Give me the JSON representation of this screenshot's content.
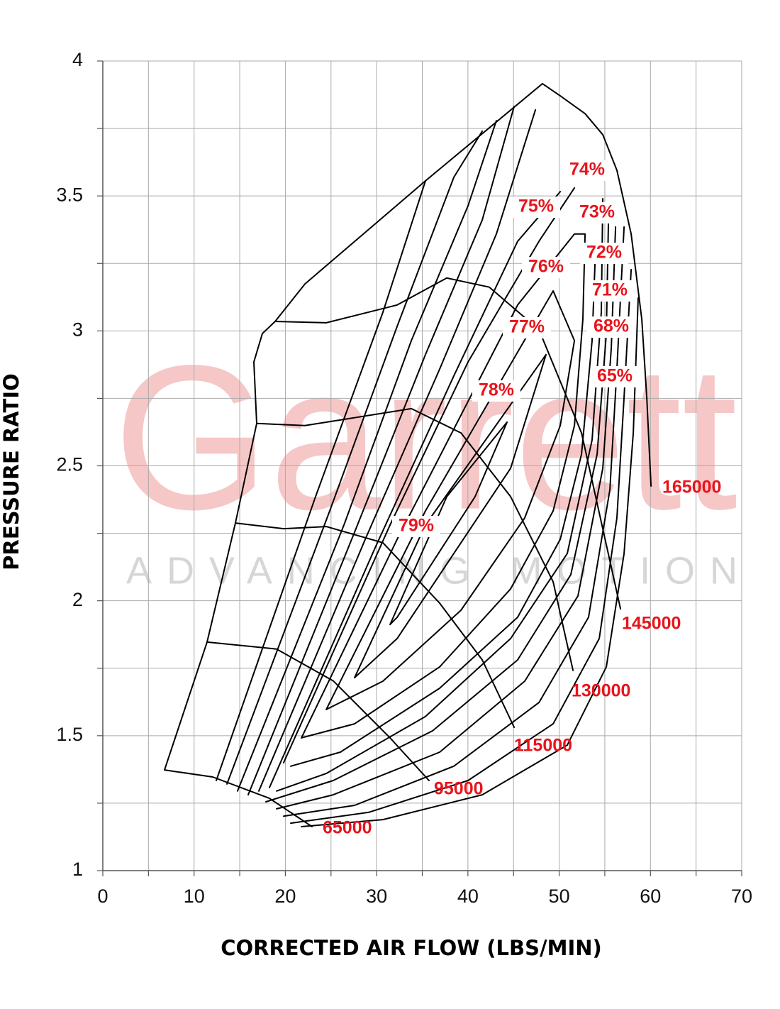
{
  "chart_data": {
    "type": "line",
    "x_label": "CORRECTED AIR FLOW (LBS/MIN)",
    "y_label": "PRESSURE RATIO",
    "xlim": [
      0,
      70
    ],
    "ylim": [
      1,
      4
    ],
    "xticks": [
      0,
      10,
      20,
      30,
      40,
      50,
      60,
      70
    ],
    "yticks": [
      1,
      1.5,
      2,
      2.5,
      3,
      3.5,
      4
    ],
    "xminor": [
      5,
      15,
      25,
      35,
      45,
      55,
      65
    ],
    "yminor": [
      1.25,
      1.75,
      2.25,
      2.75,
      3.25,
      3.75
    ],
    "grid": true,
    "line_color": "#000000",
    "label_color": "#e8141c",
    "watermark": {
      "brand": "Garrett",
      "tagline": "ADVANCING MOTION",
      "brand_color": "#f6c7c7",
      "tagline_color": "#d6d6d6"
    },
    "surge_line": {
      "x": [
        6.76,
        11.42,
        14.53,
        16.86,
        16.55,
        17.48,
        18.88,
        22.14,
        35.35,
        48.17
      ],
      "y": [
        1.373,
        1.847,
        2.288,
        2.657,
        2.885,
        2.99,
        3.035,
        3.174,
        3.556,
        3.916
      ]
    },
    "speed_lines": [
      {
        "name": "65000",
        "x": [
          6.76,
          12.04,
          18.26,
          22.92
        ],
        "y": [
          1.373,
          1.347,
          1.268,
          1.163
        ]
      },
      {
        "name": "95000",
        "x": [
          11.42,
          19.04,
          25.25,
          31.47,
          35.74
        ],
        "y": [
          1.847,
          1.821,
          1.703,
          1.492,
          1.334
        ]
      },
      {
        "name": "115000",
        "x": [
          14.53,
          19.81,
          24.48,
          30.69,
          36.91,
          41.57,
          45.07
        ],
        "y": [
          2.288,
          2.267,
          2.275,
          2.215,
          1.991,
          1.781,
          1.531
        ]
      },
      {
        "name": "130000",
        "x": [
          16.86,
          22.14,
          33.8,
          39.24,
          44.68,
          49.34,
          51.52
        ],
        "y": [
          2.657,
          2.649,
          2.712,
          2.622,
          2.386,
          2.07,
          1.742
        ]
      },
      {
        "name": "145000",
        "x": [
          18.88,
          24.48,
          32.25,
          37.69,
          42.35,
          47.79,
          52.45,
          56.72
        ],
        "y": [
          3.035,
          3.03,
          3.096,
          3.196,
          3.162,
          3.004,
          2.622,
          1.97
        ]
      },
      {
        "name": "165000",
        "x": [
          48.17,
          50.12,
          52.84,
          54.78,
          56.33,
          57.89,
          59.05,
          59.6,
          60.06
        ],
        "y": [
          3.916,
          3.871,
          3.805,
          3.727,
          3.595,
          3.359,
          3.043,
          2.754,
          2.425
        ]
      }
    ],
    "efficiency_islands": [
      {
        "name": "79%",
        "x": [
          31.47,
          37.69,
          44.29,
          40.79,
          32.25,
          31.47
        ],
        "y": [
          1.912,
          2.386,
          2.662,
          2.386,
          1.939,
          1.912
        ]
      },
      {
        "name": "78%",
        "x": [
          27.58,
          35.35,
          48.56,
          44.68,
          32.25,
          27.58
        ],
        "y": [
          1.715,
          2.281,
          2.912,
          2.491,
          1.86,
          1.715
        ]
      },
      {
        "name": "77%",
        "x": [
          24.48,
          35.35,
          49.34,
          51.67,
          50.12,
          46.23,
          39.24,
          30.69,
          24.48
        ],
        "y": [
          1.597,
          2.333,
          3.148,
          2.964,
          2.649,
          2.307,
          1.965,
          1.702,
          1.597
        ]
      },
      {
        "name": "76%",
        "x": [
          21.76,
          32.25,
          45.45,
          51.67,
          52.84,
          52.6,
          51.67,
          49.34,
          44.68,
          36.91,
          27.58,
          21.76
        ],
        "y": [
          1.492,
          2.228,
          3.096,
          3.359,
          3.359,
          3.043,
          2.649,
          2.333,
          2.044,
          1.755,
          1.544,
          1.492
        ]
      },
      {
        "name": "75%",
        "x": [
          19.81,
          31.47,
          40.02,
          47.79,
          51.67,
          null,
          54.0,
          53.61,
          52.45,
          50.12,
          45.45,
          36.91,
          26.03,
          20.59
        ],
        "y": [
          1.4,
          2.281,
          2.885,
          3.332,
          3.53,
          null,
          3.319,
          2.964,
          2.543,
          2.228,
          1.939,
          1.676,
          1.439,
          1.387
        ]
      },
      {
        "name": "74%",
        "x": [
          18.26,
          29.91,
          38.46,
          45.45,
          50.12,
          null,
          54.78,
          54.62,
          53.61,
          50.89,
          44.68,
          35.35,
          24.48,
          19.04
        ],
        "y": [
          1.308,
          2.202,
          2.833,
          3.332,
          3.516,
          null,
          3.49,
          3.069,
          2.596,
          2.175,
          1.86,
          1.571,
          1.36,
          1.295
        ]
      },
      {
        "name": "73%",
        "x": [
          17.09,
          28.75,
          36.91,
          43.12,
          47.4,
          null,
          55.4,
          55.17,
          54.16,
          51.28,
          45.45,
          36.13,
          25.25,
          17.87
        ],
        "y": [
          1.295,
          2.228,
          2.859,
          3.359,
          3.819,
          null,
          3.411,
          2.991,
          2.543,
          2.097,
          1.781,
          1.518,
          1.334,
          1.255
        ]
      },
      {
        "name": "72%",
        "x": [
          15.93,
          27.58,
          35.35,
          41.57,
          45.07,
          null,
          56.18,
          55.71,
          54.78,
          52.06,
          46.23,
          36.91,
          25.25,
          19.04
        ],
        "y": [
          1.281,
          2.254,
          2.912,
          3.411,
          3.832,
          null,
          3.385,
          2.938,
          2.491,
          2.018,
          1.702,
          1.439,
          1.281,
          1.229
        ]
      },
      {
        "name": "71%",
        "x": [
          14.76,
          26.42,
          33.8,
          40.02,
          43.12,
          null,
          57.11,
          56.33,
          55.56,
          53.22,
          47.79,
          38.46,
          27.58,
          19.81
        ],
        "y": [
          1.295,
          2.281,
          2.964,
          3.464,
          3.779,
          null,
          3.385,
          2.859,
          2.412,
          1.939,
          1.623,
          1.387,
          1.242,
          1.202
        ]
      },
      {
        "name": "68%",
        "x": [
          13.6,
          24.86,
          32.25,
          38.46,
          41.57,
          null,
          57.89,
          57.11,
          56.33,
          54.39,
          49.34,
          40.02,
          29.14,
          20.59
        ],
        "y": [
          1.321,
          2.333,
          3.017,
          3.569,
          3.74,
          null,
          3.227,
          2.754,
          2.307,
          1.86,
          1.544,
          1.334,
          1.216,
          1.176
        ]
      },
      {
        "name": "65%",
        "x": [
          12.43,
          23.31,
          30.69,
          35.35,
          null,
          58.66,
          58.12,
          57.11,
          55.17,
          50.89,
          41.57,
          30.69,
          21.76
        ],
        "y": [
          1.334,
          2.386,
          3.069,
          3.556,
          null,
          3.122,
          2.622,
          2.175,
          1.755,
          1.465,
          1.281,
          1.189,
          1.163
        ]
      }
    ]
  }
}
